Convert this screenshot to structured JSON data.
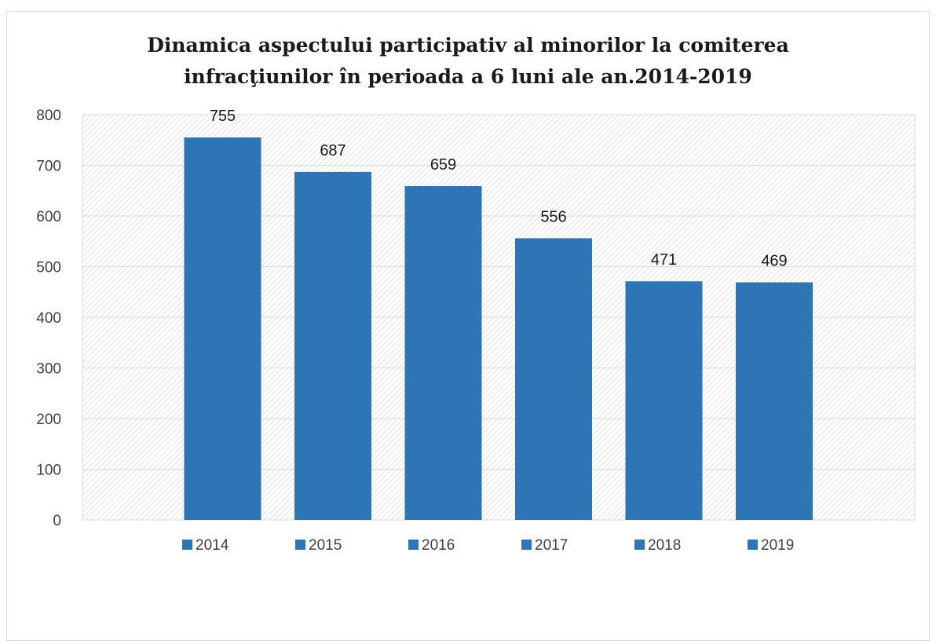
{
  "chart_data": {
    "type": "bar",
    "title_lines": [
      "Dinamica aspectului participativ al minorilor la comiterea",
      "infracţiunilor în perioada a 6 luni ale  an.2014-2019"
    ],
    "categories": [
      "2014",
      "2015",
      "2016",
      "2017",
      "2018",
      "2019"
    ],
    "values": [
      755,
      687,
      659,
      556,
      471,
      469
    ],
    "data_labels": [
      "755",
      "687",
      "659",
      "556",
      "471",
      "469"
    ],
    "legend": [
      "2014",
      "2015",
      "2016",
      "2017",
      "2018",
      "2019"
    ],
    "ylim": [
      0,
      800
    ],
    "yticks": [
      0,
      100,
      200,
      300,
      400,
      500,
      600,
      700,
      800
    ],
    "ytick_labels": [
      "0",
      "100",
      "200",
      "300",
      "400",
      "500",
      "600",
      "700",
      "800"
    ],
    "legend_position": "bottom",
    "grid": true,
    "plot_background": "diagonal hatch",
    "bar_color": "#2e75b6",
    "grid_color": "#d9d9d9"
  }
}
